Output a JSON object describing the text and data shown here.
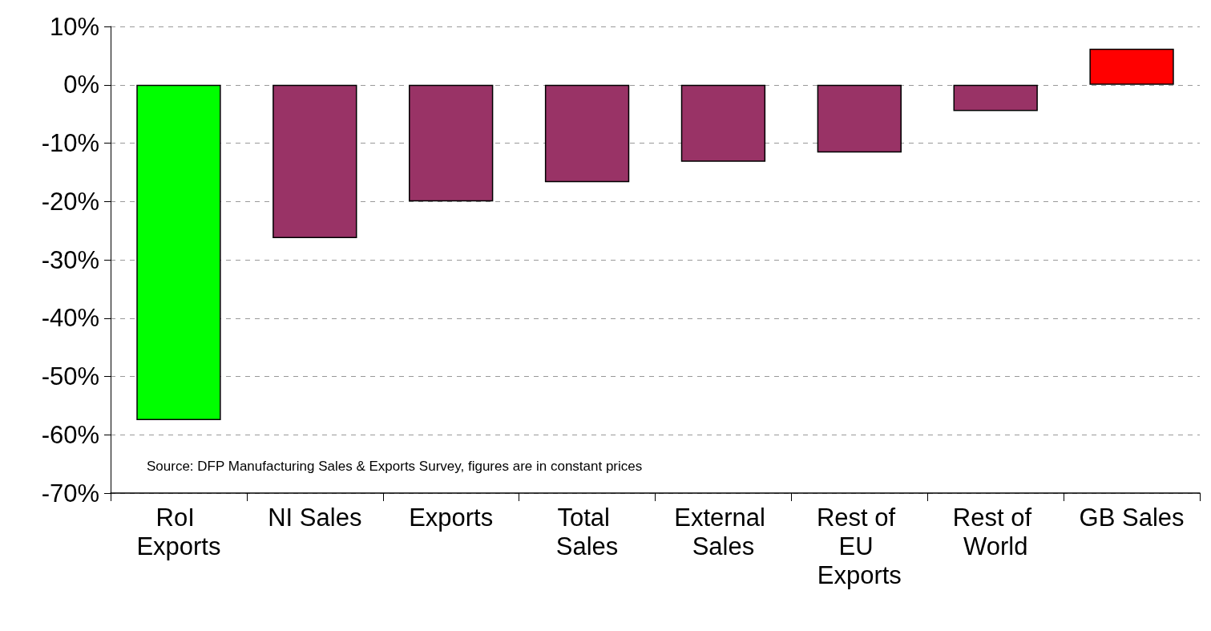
{
  "chart_data": {
    "type": "bar",
    "categories": [
      "RoI Exports",
      "NI Sales",
      "Exports",
      "Total Sales",
      "External Sales",
      "Rest of EU Exports",
      "Rest of World",
      "GB Sales"
    ],
    "values": [
      -57.5,
      -26.3,
      -20,
      -16.7,
      -13.2,
      -11.6,
      -4.5,
      6.2
    ],
    "colors": [
      "#00ff00",
      "#993366",
      "#993366",
      "#993366",
      "#993366",
      "#993366",
      "#993366",
      "#ff0000"
    ],
    "ylim": [
      -70,
      10
    ],
    "yticks": [
      {
        "value": -70,
        "label": "-70%"
      },
      {
        "value": -60,
        "label": "-60%"
      },
      {
        "value": -50,
        "label": "-50%"
      },
      {
        "value": -40,
        "label": "-40%"
      },
      {
        "value": -30,
        "label": "-30%"
      },
      {
        "value": -20,
        "label": "-20%"
      },
      {
        "value": -10,
        "label": "-10%"
      },
      {
        "value": 0,
        "label": "0%"
      },
      {
        "value": 10,
        "label": "10%"
      }
    ],
    "grid": "y",
    "annotations": [
      "Source: DFP Manufacturing Sales & Exports Survey, figures are in constant prices"
    ]
  }
}
